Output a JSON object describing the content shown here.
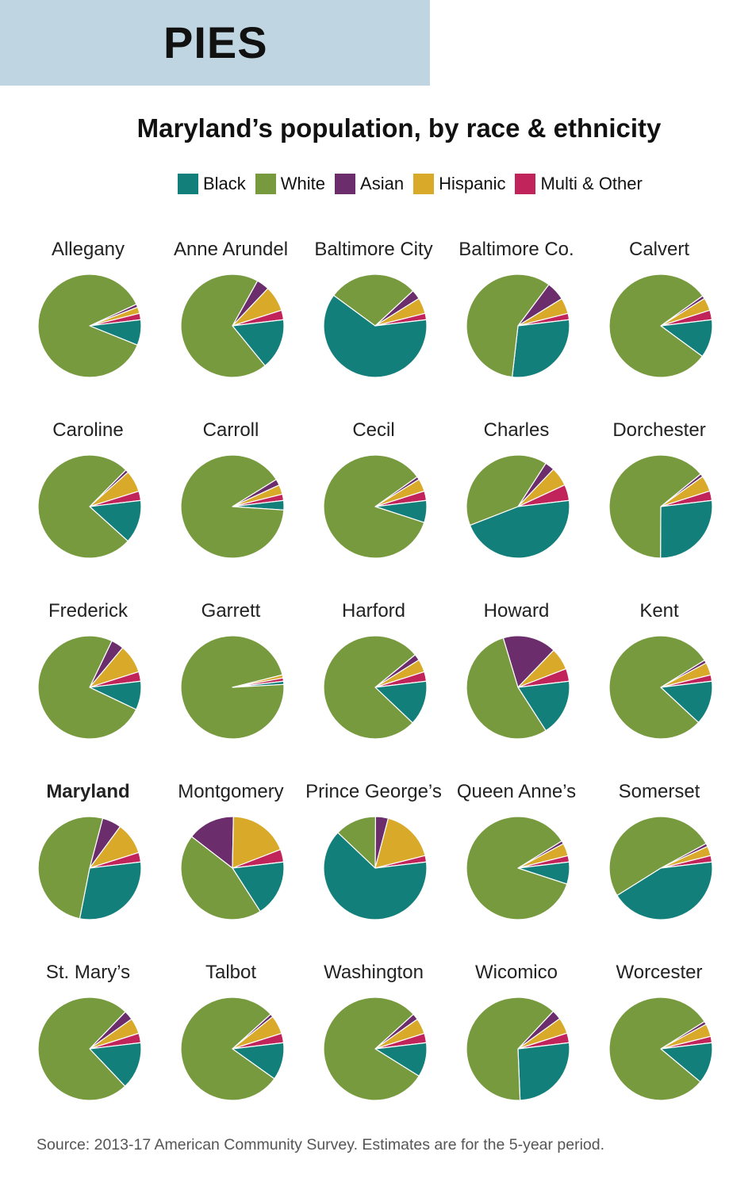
{
  "banner": {
    "text": "PIES"
  },
  "source": "Source: 2013-17 American Community Survey. Estimates are for the 5-year period.",
  "chart_data": {
    "type": "pie",
    "title": "Maryland’s population, by race & ethnicity",
    "legend": [
      {
        "name": "Black",
        "color": "#137f7b"
      },
      {
        "name": "White",
        "color": "#789a3f"
      },
      {
        "name": "Asian",
        "color": "#6b2d6b"
      },
      {
        "name": "Hispanic",
        "color": "#d9a92a"
      },
      {
        "name": "Multi & Other",
        "color": "#c0245a"
      }
    ],
    "pies": [
      {
        "name": "Allegany",
        "values": {
          "Black": 8,
          "White": 87,
          "Asian": 1,
          "Hispanic": 2,
          "Multi & Other": 2
        }
      },
      {
        "name": "Anne Arundel",
        "values": {
          "Black": 16,
          "White": 69,
          "Asian": 4,
          "Hispanic": 8,
          "Multi & Other": 3
        }
      },
      {
        "name": "Baltimore City",
        "values": {
          "Black": 62,
          "White": 28,
          "Asian": 3,
          "Hispanic": 5,
          "Multi & Other": 2
        }
      },
      {
        "name": "Baltimore Co.",
        "values": {
          "Black": 29,
          "White": 59,
          "Asian": 6,
          "Hispanic": 5,
          "Multi & Other": 2
        }
      },
      {
        "name": "Calvert",
        "values": {
          "Black": 12,
          "White": 80,
          "Asian": 1,
          "Hispanic": 4,
          "Multi & Other": 3
        }
      },
      {
        "name": "Caroline",
        "values": {
          "Black": 14,
          "White": 78,
          "Asian": 1,
          "Hispanic": 7,
          "Multi & Other": 3
        }
      },
      {
        "name": "Carroll",
        "values": {
          "Black": 3,
          "White": 91,
          "Asian": 2,
          "Hispanic": 3,
          "Multi & Other": 2
        }
      },
      {
        "name": "Cecil",
        "values": {
          "Black": 7,
          "White": 86,
          "Asian": 1,
          "Hispanic": 4,
          "Multi & Other": 3
        }
      },
      {
        "name": "Charles",
        "values": {
          "Black": 46,
          "White": 40,
          "Asian": 3,
          "Hispanic": 6,
          "Multi & Other": 5
        }
      },
      {
        "name": "Dorchester",
        "values": {
          "Black": 27,
          "White": 64,
          "Asian": 1,
          "Hispanic": 5,
          "Multi & Other": 3
        }
      },
      {
        "name": "Frederick",
        "values": {
          "Black": 9,
          "White": 75,
          "Asian": 4,
          "Hispanic": 9,
          "Multi & Other": 3
        }
      },
      {
        "name": "Garrett",
        "values": {
          "Black": 1,
          "White": 97,
          "Asian": 0,
          "Hispanic": 1,
          "Multi & Other": 1
        }
      },
      {
        "name": "Harford",
        "values": {
          "Black": 14,
          "White": 77,
          "Asian": 2,
          "Hispanic": 4,
          "Multi & Other": 3
        }
      },
      {
        "name": "Howard",
        "values": {
          "Black": 18,
          "White": 55,
          "Asian": 17,
          "Hispanic": 7,
          "Multi & Other": 4
        }
      },
      {
        "name": "Kent",
        "values": {
          "Black": 14,
          "White": 80,
          "Asian": 1,
          "Hispanic": 4,
          "Multi & Other": 2
        }
      },
      {
        "name": "Maryland",
        "bold": true,
        "values": {
          "Black": 30,
          "White": 51,
          "Asian": 6,
          "Hispanic": 10,
          "Multi & Other": 3
        }
      },
      {
        "name": "Montgomery",
        "values": {
          "Black": 18,
          "White": 45,
          "Asian": 15,
          "Hispanic": 19,
          "Multi & Other": 4
        }
      },
      {
        "name": "Prince George’s",
        "values": {
          "Black": 64,
          "White": 13,
          "Asian": 4,
          "Hispanic": 17,
          "Multi & Other": 2
        }
      },
      {
        "name": "Queen Anne’s",
        "values": {
          "Black": 7,
          "White": 87,
          "Asian": 1,
          "Hispanic": 4,
          "Multi & Other": 2
        }
      },
      {
        "name": "Somerset",
        "values": {
          "Black": 43,
          "White": 51,
          "Asian": 1,
          "Hispanic": 3,
          "Multi & Other": 2
        }
      },
      {
        "name": "St. Mary’s",
        "values": {
          "Black": 15,
          "White": 75,
          "Asian": 3,
          "Hispanic": 5,
          "Multi & Other": 3
        }
      },
      {
        "name": "Talbot",
        "values": {
          "Black": 12,
          "White": 80,
          "Asian": 1,
          "Hispanic": 6,
          "Multi & Other": 3
        }
      },
      {
        "name": "Washington",
        "values": {
          "Black": 11,
          "White": 81,
          "Asian": 2,
          "Hispanic": 5,
          "Multi & Other": 3
        }
      },
      {
        "name": "Wicomico",
        "values": {
          "Black": 26,
          "White": 62,
          "Asian": 3,
          "Hispanic": 5,
          "Multi & Other": 3
        }
      },
      {
        "name": "Worcester",
        "values": {
          "Black": 13,
          "White": 80,
          "Asian": 1,
          "Hispanic": 4,
          "Multi & Other": 2
        }
      }
    ]
  }
}
